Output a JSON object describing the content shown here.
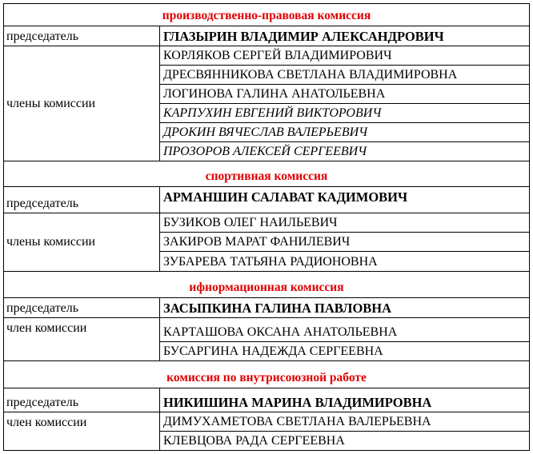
{
  "sections": [
    {
      "title": "производственно-правовая комиссия",
      "chair_label": "председатель",
      "chair": "ГЛАЗЫРИН ВЛАДИМИР АЛЕКСАНДРОВИЧ",
      "members_label": "члены комиссии",
      "members": [
        "КОРЛЯКОВ СЕРГЕЙ ВЛАДИМИРОВИЧ",
        "ДРЕСВЯННИКОВА СВЕТЛАНА ВЛАДИМИРОВНА",
        "ЛОГИНОВА ГАЛИНА АНАТОЛЬЕВНА",
        "КАРПУХИН ЕВГЕНИЙ ВИКТОРОВИЧ",
        "ДРОКИН ВЯЧЕСЛАВ ВАЛЕРЬЕВИЧ",
        "ПРОЗОРОВ АЛЕКСЕЙ СЕРГЕЕВИЧ"
      ]
    },
    {
      "title": "спортивная комиссия",
      "chair_label": "председатель",
      "chair": "АРМАНШИН САЛАВАТ КАДИМОВИЧ",
      "members_label": "члены комиссии",
      "members": [
        "БУЗИКОВ ОЛЕГ НАИЛЬЕВИЧ",
        "ЗАКИРОВ МАРАТ ФАНИЛЕВИЧ",
        "ЗУБАРЕВА ТАТЬЯНА РАДИОНОВНА"
      ]
    },
    {
      "title": "ифнормационная комиссия",
      "chair_label": "председатель",
      "chair": "ЗАСЫПКИНА ГАЛИНА ПАВЛОВНА",
      "members_label": "член комиссии",
      "members": [
        "КАРТАШОВА ОКСАНА АНАТОЛЬЕВНА",
        "БУСАРГИНА НАДЕЖДА СЕРГЕЕВНА"
      ]
    },
    {
      "title": "комиссия по внутрисоюзной работе",
      "chair_label": "председатель",
      "chair": "НИКИШИНА МАРИНА ВЛАДИМИРОВНА",
      "members_label": "член комиссии",
      "members": [
        "ДИМУХАМЕТОВА СВЕТЛАНА ВАЛЕРЬЕВНА",
        "КЛЕВЦОВА РАДА СЕРГЕЕВНА"
      ]
    }
  ],
  "colors": {
    "section_title": "#e00000",
    "text": "#000000",
    "border": "#000000"
  }
}
